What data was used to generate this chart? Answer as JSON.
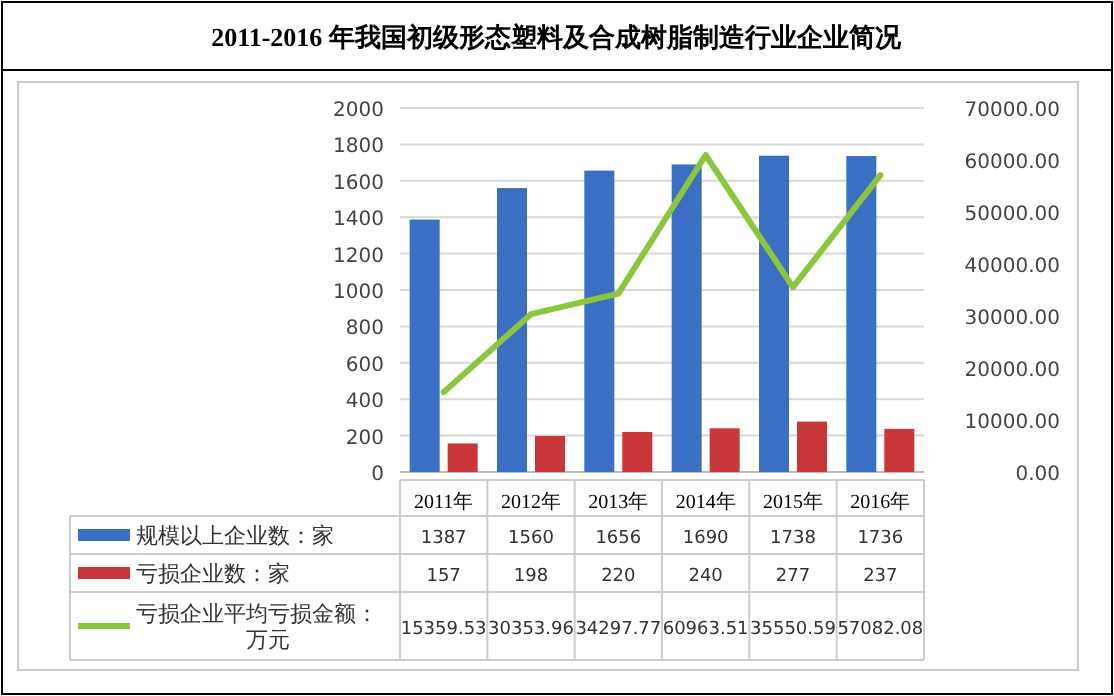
{
  "chart_data": {
    "type": "bar",
    "title": "2011-2016 年我国初级形态塑料及合成树脂制造行业企业简况",
    "categories": [
      "2011年",
      "2012年",
      "2013年",
      "2014年",
      "2015年",
      "2016年"
    ],
    "series": [
      {
        "name": "规模以上企业数：家",
        "color": "#3b6fc4",
        "values": [
          1387,
          1560,
          1656,
          1690,
          1738,
          1736
        ]
      },
      {
        "name": "亏损企业数：家",
        "color": "#c9373a",
        "values": [
          157,
          198,
          220,
          240,
          277,
          237
        ]
      },
      {
        "name": "亏损企业平均亏损金额：万元",
        "type": "line",
        "axis": "y2",
        "color": "#8cc63f",
        "values": [
          15359.53,
          30353.96,
          34297.77,
          60963.51,
          35550.59,
          57082.08
        ]
      }
    ],
    "ylim": [
      0,
      2000
    ],
    "yticks": [
      0,
      200,
      400,
      600,
      800,
      1000,
      1200,
      1400,
      1600,
      1800,
      2000
    ],
    "y2lim": [
      0,
      70000
    ],
    "y2ticks": [
      {
        "value": 0,
        "label": "0.00"
      },
      {
        "value": 10000,
        "label": "10000.00"
      },
      {
        "value": 20000,
        "label": "20000.00"
      },
      {
        "value": 30000,
        "label": "30000.00"
      },
      {
        "value": 40000,
        "label": "40000.00"
      },
      {
        "value": 50000,
        "label": "50000.00"
      },
      {
        "value": 60000,
        "label": "60000.00"
      },
      {
        "value": 70000,
        "label": "70000.00"
      }
    ],
    "grid": "y",
    "data_labels": true,
    "legend": "bottom"
  }
}
